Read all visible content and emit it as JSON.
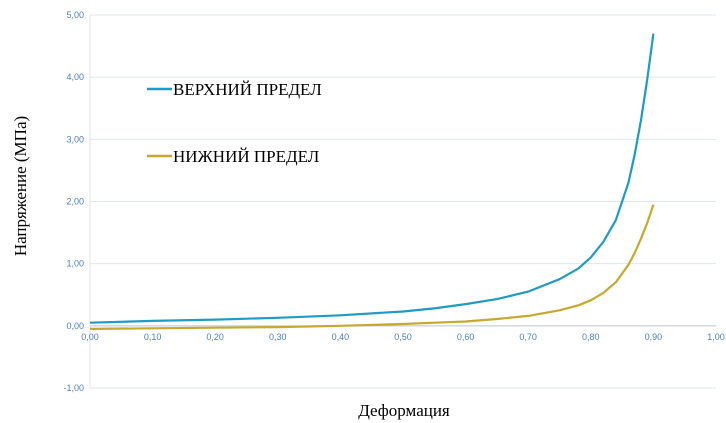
{
  "chart_data": {
    "type": "line",
    "title": "",
    "xlabel": "Деформация",
    "ylabel": "Напряжение (МПа)",
    "xlim": [
      0,
      1
    ],
    "ylim": [
      -1,
      5
    ],
    "x_ticks": [
      "0,00",
      "0,10",
      "0,20",
      "0,30",
      "0,40",
      "0,50",
      "0,60",
      "0,70",
      "0,80",
      "0,90",
      "1,00"
    ],
    "y_ticks": [
      "-1,00",
      "0,00",
      "1,00",
      "2,00",
      "3,00",
      "4,00",
      "5,00"
    ],
    "x_tick_values": [
      0,
      0.1,
      0.2,
      0.3,
      0.4,
      0.5,
      0.6,
      0.7,
      0.8,
      0.9,
      1.0
    ],
    "y_tick_values": [
      -1,
      0,
      1,
      2,
      3,
      4,
      5
    ],
    "grid": "horizontal",
    "legend_position": "upper-left",
    "series": [
      {
        "name": "ВЕРХНИЙ ПРЕДЕЛ",
        "color": "#1f9bc8",
        "x": [
          0.0,
          0.1,
          0.2,
          0.3,
          0.4,
          0.5,
          0.55,
          0.6,
          0.65,
          0.7,
          0.75,
          0.78,
          0.8,
          0.82,
          0.84,
          0.86,
          0.87,
          0.88,
          0.89,
          0.9
        ],
        "y": [
          0.05,
          0.08,
          0.1,
          0.13,
          0.17,
          0.23,
          0.28,
          0.35,
          0.43,
          0.55,
          0.75,
          0.92,
          1.1,
          1.35,
          1.7,
          2.3,
          2.75,
          3.3,
          3.95,
          4.7
        ]
      },
      {
        "name": "НИЖНИЙ ПРЕДЕЛ",
        "color": "#c8a82e",
        "x": [
          0.0,
          0.1,
          0.2,
          0.3,
          0.4,
          0.5,
          0.55,
          0.6,
          0.65,
          0.7,
          0.75,
          0.78,
          0.8,
          0.82,
          0.84,
          0.86,
          0.87,
          0.88,
          0.89,
          0.9
        ],
        "y": [
          -0.05,
          -0.04,
          -0.03,
          -0.02,
          0.0,
          0.03,
          0.05,
          0.07,
          0.11,
          0.16,
          0.25,
          0.33,
          0.41,
          0.53,
          0.7,
          0.98,
          1.17,
          1.4,
          1.65,
          1.95
        ]
      }
    ]
  }
}
